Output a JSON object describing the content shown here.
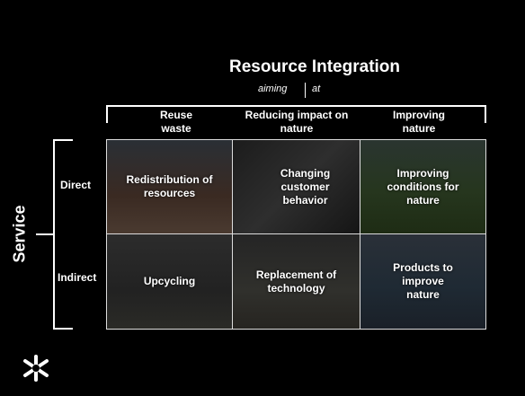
{
  "header": {
    "title": "Resource Integration",
    "aiming": "aiming",
    "at": "at"
  },
  "columns": [
    "Reuse waste",
    "Reducing impact on nature",
    "Improving nature"
  ],
  "axis_label": "Service",
  "rows": [
    {
      "label": "Direct",
      "cells": [
        "Redistribution of resources",
        "Changing customer behavior",
        "Improving conditions for nature"
      ]
    },
    {
      "label": "Indirect",
      "cells": [
        "Upcycling",
        "Replacement of technology",
        "Products to improve nature"
      ]
    }
  ]
}
